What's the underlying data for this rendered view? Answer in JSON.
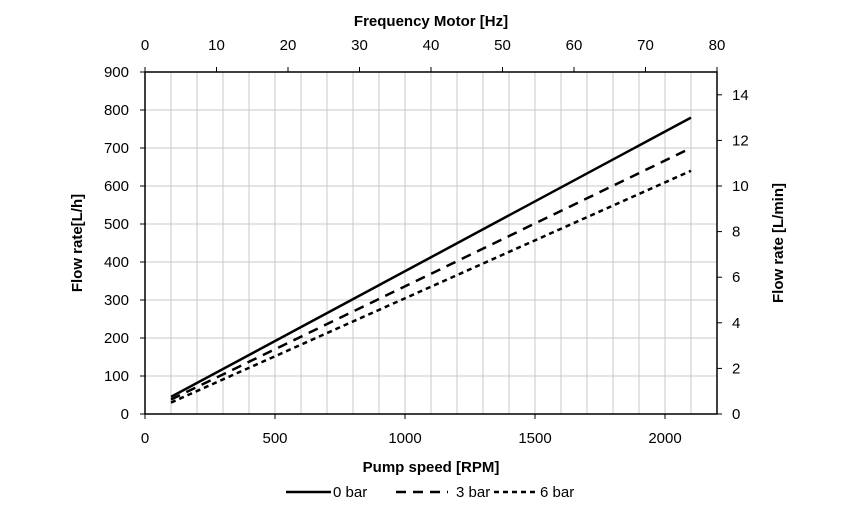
{
  "chart_data": {
    "type": "line",
    "xlabel": "Pump speed [RPM]",
    "x2label": "Frequency Motor [Hz]",
    "ylabel": "Flow rate[L/h]",
    "y2label": "Flow rate [L/min]",
    "xlim": [
      0,
      2200
    ],
    "ylim": [
      0,
      900
    ],
    "x2lim": [
      0,
      80
    ],
    "y2lim": [
      0,
      15
    ],
    "xticks": [
      "0",
      "500",
      "1000",
      "1500",
      "2000"
    ],
    "yticks": [
      "0",
      "100",
      "200",
      "300",
      "400",
      "500",
      "600",
      "700",
      "800",
      "900"
    ],
    "x2ticks": [
      "0",
      "10",
      "20",
      "30",
      "40",
      "50",
      "60",
      "70",
      "80"
    ],
    "y2ticks": [
      "0",
      "2",
      "4",
      "6",
      "8",
      "10",
      "12",
      "14"
    ],
    "grid": true,
    "legend_position": "bottom",
    "series": [
      {
        "name": "0 bar",
        "style": "solid",
        "x": [
          100,
          2100
        ],
        "y": [
          45,
          780
        ]
      },
      {
        "name": "3 bar",
        "style": "dashed",
        "x": [
          100,
          2100
        ],
        "y": [
          38,
          700
        ]
      },
      {
        "name": "6 bar",
        "style": "dotted",
        "x": [
          100,
          2100
        ],
        "y": [
          30,
          640
        ]
      }
    ]
  }
}
